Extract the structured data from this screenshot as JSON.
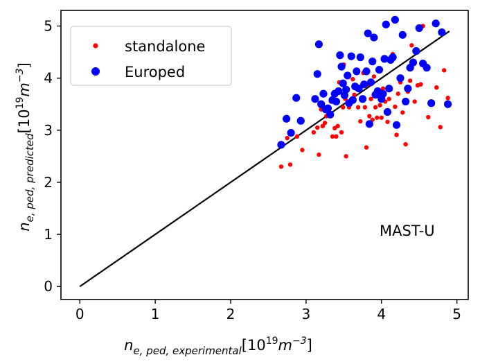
{
  "chart_data": {
    "type": "scatter",
    "xlim": [
      -0.25,
      5.15
    ],
    "ylim": [
      -0.25,
      5.3
    ],
    "xticks": [
      0,
      1,
      2,
      3,
      4,
      5
    ],
    "yticks": [
      0,
      1,
      2,
      3,
      4,
      5
    ],
    "x_tick_labels": [
      "0",
      "1",
      "2",
      "3",
      "4",
      "5"
    ],
    "y_tick_labels": [
      "0",
      "1",
      "2",
      "3",
      "4",
      "5"
    ],
    "xlabel": {
      "base": "n",
      "subscript": "e, ped, experimental",
      "unit_open": "[10",
      "unit_exp": "19",
      "unit_m": "m",
      "unit_m_exp": "−3",
      "unit_close": "]"
    },
    "ylabel": {
      "base": "n",
      "subscript": "e, ped, predicted",
      "unit_open": "[10",
      "unit_exp": "19",
      "unit_m": "m",
      "unit_m_exp": "−3",
      "unit_close": "]"
    },
    "annotation": "MAST-U",
    "grid": false,
    "legend_position": "upper-left",
    "reference_line": {
      "x": [
        0,
        4.9
      ],
      "y": [
        0,
        4.9
      ],
      "color": "#000000"
    },
    "series": [
      {
        "name": "standalone",
        "color": "#ff0000",
        "marker_size": "small",
        "points": [
          [
            2.67,
            2.3
          ],
          [
            2.75,
            2.85
          ],
          [
            2.79,
            2.34
          ],
          [
            2.88,
            2.88
          ],
          [
            2.95,
            2.62
          ],
          [
            3.1,
            2.96
          ],
          [
            3.15,
            3.05
          ],
          [
            3.17,
            2.53
          ],
          [
            3.2,
            3.4
          ],
          [
            3.22,
            3.08
          ],
          [
            3.25,
            3.14
          ],
          [
            3.27,
            3.27
          ],
          [
            3.3,
            3.32
          ],
          [
            3.33,
            3.55
          ],
          [
            3.35,
            2.88
          ],
          [
            3.38,
            3.04
          ],
          [
            3.4,
            2.88
          ],
          [
            3.42,
            3.08
          ],
          [
            3.44,
            3.92
          ],
          [
            3.47,
            2.96
          ],
          [
            3.49,
            3.44
          ],
          [
            3.5,
            4.26
          ],
          [
            3.52,
            3.6
          ],
          [
            3.53,
            2.5
          ],
          [
            3.55,
            3.8
          ],
          [
            3.57,
            3.44
          ],
          [
            3.6,
            3.53
          ],
          [
            3.62,
            3.98
          ],
          [
            3.64,
            3.68
          ],
          [
            3.67,
            3.8
          ],
          [
            3.69,
            3.44
          ],
          [
            3.72,
            3.17
          ],
          [
            3.74,
            3.6
          ],
          [
            3.76,
            4.1
          ],
          [
            3.78,
            3.44
          ],
          [
            3.8,
            2.67
          ],
          [
            3.82,
            3.88
          ],
          [
            3.84,
            3.27
          ],
          [
            3.86,
            3.6
          ],
          [
            3.88,
            3.2
          ],
          [
            3.9,
            4.03
          ],
          [
            3.92,
            3.44
          ],
          [
            3.94,
            3.24
          ],
          [
            3.96,
            3.66
          ],
          [
            3.98,
            3.48
          ],
          [
            4.0,
            3.24
          ],
          [
            4.02,
            3.8
          ],
          [
            4.05,
            3.55
          ],
          [
            4.08,
            3.16
          ],
          [
            4.1,
            3.6
          ],
          [
            4.15,
            4.46
          ],
          [
            4.18,
            3.45
          ],
          [
            4.2,
            2.91
          ],
          [
            4.22,
            3.7
          ],
          [
            4.25,
            3.92
          ],
          [
            4.28,
            3.34
          ],
          [
            4.32,
            2.73
          ],
          [
            4.35,
            3.74
          ],
          [
            4.38,
            3.95
          ],
          [
            4.4,
            4.63
          ],
          [
            4.44,
            3.55
          ],
          [
            4.48,
            3.86
          ],
          [
            4.52,
            3.88
          ],
          [
            4.55,
            5.0
          ],
          [
            4.58,
            4.22
          ],
          [
            4.62,
            3.25
          ],
          [
            4.68,
            3.5
          ],
          [
            4.73,
            3.82
          ],
          [
            4.78,
            3.06
          ],
          [
            4.83,
            4.15
          ],
          [
            4.88,
            3.62
          ]
        ]
      },
      {
        "name": "Europed",
        "color": "#0000ff",
        "marker_size": "large",
        "points": [
          [
            2.67,
            2.72
          ],
          [
            2.74,
            3.22
          ],
          [
            2.8,
            2.95
          ],
          [
            2.87,
            3.62
          ],
          [
            2.93,
            3.18
          ],
          [
            3.12,
            3.6
          ],
          [
            3.15,
            4.08
          ],
          [
            3.17,
            4.65
          ],
          [
            3.2,
            3.5
          ],
          [
            3.23,
            3.7
          ],
          [
            3.26,
            3.4
          ],
          [
            3.29,
            3.42
          ],
          [
            3.32,
            3.3
          ],
          [
            3.35,
            3.58
          ],
          [
            3.38,
            3.7
          ],
          [
            3.4,
            3.55
          ],
          [
            3.43,
            3.75
          ],
          [
            3.45,
            4.44
          ],
          [
            3.47,
            4.22
          ],
          [
            3.49,
            3.9
          ],
          [
            3.51,
            3.67
          ],
          [
            3.53,
            3.78
          ],
          [
            3.55,
            4.05
          ],
          [
            3.57,
            3.52
          ],
          [
            3.6,
            4.42
          ],
          [
            3.62,
            3.58
          ],
          [
            3.65,
            3.84
          ],
          [
            3.67,
            4.13
          ],
          [
            3.7,
            3.8
          ],
          [
            3.72,
            4.4
          ],
          [
            3.75,
            3.6
          ],
          [
            3.77,
            3.88
          ],
          [
            3.8,
            4.13
          ],
          [
            3.82,
            4.86
          ],
          [
            3.84,
            3.12
          ],
          [
            3.86,
            3.92
          ],
          [
            3.88,
            4.32
          ],
          [
            3.9,
            4.78
          ],
          [
            3.92,
            3.68
          ],
          [
            3.95,
            3.75
          ],
          [
            3.97,
            4.16
          ],
          [
            4.0,
            3.6
          ],
          [
            4.02,
            3.7
          ],
          [
            4.04,
            4.37
          ],
          [
            4.06,
            5.03
          ],
          [
            4.08,
            3.35
          ],
          [
            4.1,
            3.8
          ],
          [
            4.12,
            4.35
          ],
          [
            4.15,
            4.4
          ],
          [
            4.18,
            5.12
          ],
          [
            4.2,
            3.1
          ],
          [
            4.25,
            4.0
          ],
          [
            4.28,
            4.83
          ],
          [
            4.32,
            3.55
          ],
          [
            4.35,
            3.8
          ],
          [
            4.38,
            4.2
          ],
          [
            4.42,
            4.3
          ],
          [
            4.46,
            4.52
          ],
          [
            4.5,
            4.96
          ],
          [
            4.55,
            4.28
          ],
          [
            4.6,
            4.2
          ],
          [
            4.66,
            3.52
          ],
          [
            4.72,
            5.05
          ],
          [
            4.8,
            4.88
          ],
          [
            4.88,
            3.5
          ]
        ]
      }
    ]
  }
}
